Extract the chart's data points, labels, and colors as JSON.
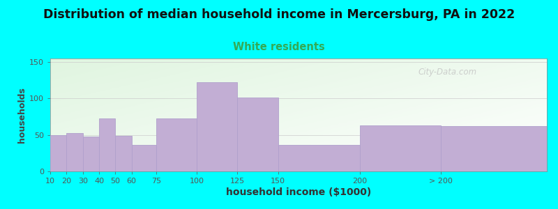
{
  "title": "Distribution of median household income in Mercersburg, PA in 2022",
  "subtitle": "White residents",
  "xlabel": "household income ($1000)",
  "ylabel": "households",
  "background_color": "#00FFFF",
  "bar_color": "#c2aed4",
  "bar_edge_color": "#b0a0cc",
  "title_fontsize": 12.5,
  "subtitle_fontsize": 10.5,
  "subtitle_color": "#33aa55",
  "xlabel_fontsize": 10,
  "ylabel_fontsize": 9,
  "values": [
    50,
    53,
    48,
    73,
    49,
    36,
    73,
    122,
    101,
    36,
    63,
    62
  ],
  "bar_lefts": [
    10,
    20,
    30,
    40,
    50,
    60,
    75,
    100,
    125,
    150,
    200,
    250
  ],
  "bar_widths": [
    10,
    10,
    10,
    10,
    10,
    15,
    25,
    25,
    25,
    50,
    50,
    65
  ],
  "tick_positions": [
    10,
    20,
    30,
    40,
    50,
    60,
    75,
    100,
    125,
    150,
    200,
    250
  ],
  "tick_labels": [
    "10",
    "20",
    "30",
    "40",
    "50",
    "60",
    "75",
    "100",
    "125",
    "150",
    "200",
    "> 200"
  ],
  "xlim_left": 10,
  "xlim_right": 315,
  "ylim": [
    0,
    155
  ],
  "yticks": [
    0,
    50,
    100,
    150
  ],
  "watermark": "City-Data.com"
}
